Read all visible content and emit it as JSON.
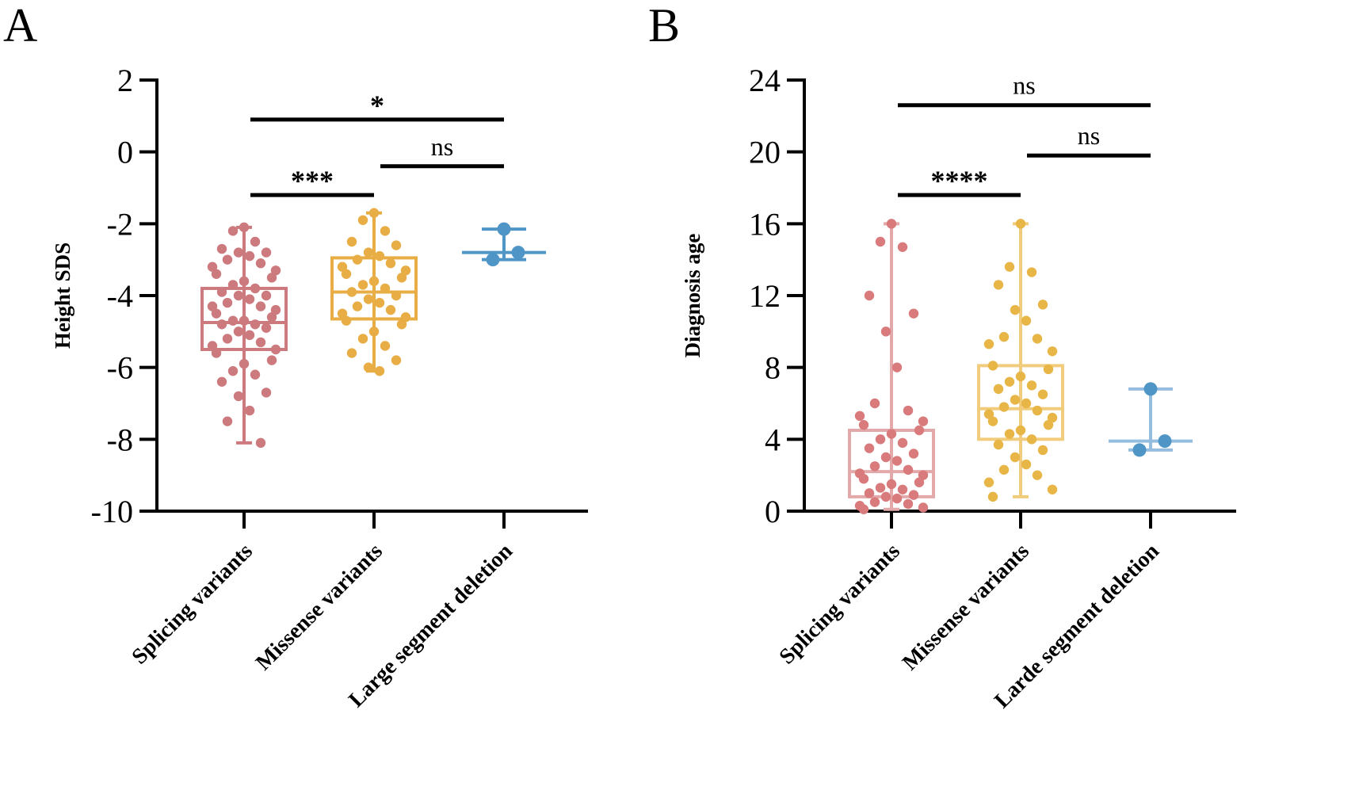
{
  "chart_data": [
    {
      "panel": "A",
      "type": "box",
      "ylabel": "Height SDS",
      "ylim": [
        -10,
        2
      ],
      "yticks": [
        "2",
        "0",
        "-2",
        "-4",
        "-6",
        "-8",
        "-10"
      ],
      "categories": [
        "Splicing variants",
        "Missense variants",
        "Large segment deletion"
      ],
      "colors": [
        "#cc7a7e",
        "#e8ae45",
        "#4f96c7"
      ],
      "boxes": [
        {
          "min": -8.1,
          "q1": -5.5,
          "median": -4.75,
          "q3": -3.8,
          "max": -2.1
        },
        {
          "min": -6.1,
          "q1": -4.65,
          "median": -3.9,
          "q3": -2.95,
          "max": -1.7
        },
        {
          "min": -3.0,
          "q1": -3.0,
          "median": -2.8,
          "q3": -2.15,
          "max": -2.15
        }
      ],
      "points": [
        [
          -2.1,
          -2.2,
          -2.5,
          -2.7,
          -2.8,
          -2.8,
          -2.9,
          -3.0,
          -3.1,
          -3.2,
          -3.3,
          -3.4,
          -3.5,
          -3.6,
          -3.7,
          -3.8,
          -3.9,
          -4.0,
          -4.0,
          -4.1,
          -4.2,
          -4.3,
          -4.3,
          -4.4,
          -4.5,
          -4.6,
          -4.7,
          -4.7,
          -4.8,
          -4.8,
          -4.9,
          -5.0,
          -5.1,
          -5.2,
          -5.3,
          -5.4,
          -5.5,
          -5.6,
          -5.8,
          -5.9,
          -6.1,
          -6.2,
          -6.4,
          -6.7,
          -6.8,
          -7.2,
          -7.5,
          -8.1
        ],
        [
          -1.7,
          -1.9,
          -2.2,
          -2.5,
          -2.6,
          -2.8,
          -2.9,
          -3.0,
          -3.1,
          -3.2,
          -3.3,
          -3.4,
          -3.5,
          -3.6,
          -3.7,
          -3.8,
          -3.9,
          -4.0,
          -4.1,
          -4.2,
          -4.3,
          -4.4,
          -4.5,
          -4.6,
          -4.7,
          -4.8,
          -5.0,
          -5.2,
          -5.4,
          -5.6,
          -5.8,
          -6.0,
          -6.1
        ],
        [
          -2.15,
          -2.8,
          -3.0
        ]
      ],
      "comparisons": [
        {
          "groups": [
            0,
            2
          ],
          "label": "*",
          "y": 0.9
        },
        {
          "groups": [
            1,
            2
          ],
          "label": "ns",
          "y": -0.4
        },
        {
          "groups": [
            0,
            1
          ],
          "label": "***",
          "y": -1.2
        }
      ]
    },
    {
      "panel": "B",
      "type": "box",
      "ylabel": "Diagnosis age",
      "ylim": [
        0,
        24
      ],
      "yticks": [
        "24",
        "20",
        "16",
        "12",
        "8",
        "4",
        "0"
      ],
      "categories": [
        "Splicing variants",
        "Missense variants",
        "Larde segment deletion"
      ],
      "colors": [
        "#e3a9aa",
        "#f1cc7d",
        "#94bde0"
      ],
      "point_colors": [
        "#d97a7c",
        "#e8b547",
        "#4f96c7"
      ],
      "boxes": [
        {
          "min": 0.1,
          "q1": 0.8,
          "median": 2.2,
          "q3": 4.5,
          "max": 16.0
        },
        {
          "min": 0.8,
          "q1": 4.0,
          "median": 5.7,
          "q3": 8.1,
          "max": 16.0
        },
        {
          "min": 3.4,
          "q1": 3.4,
          "median": 3.9,
          "q3": 6.8,
          "max": 6.8
        }
      ],
      "points": [
        [
          16.0,
          15.0,
          14.7,
          12.0,
          11.0,
          10.0,
          8.0,
          6.0,
          5.6,
          5.3,
          5.0,
          4.8,
          4.5,
          4.3,
          4.0,
          3.8,
          3.5,
          3.2,
          3.0,
          2.8,
          2.5,
          2.3,
          2.1,
          2.0,
          1.8,
          1.6,
          1.5,
          1.3,
          1.2,
          1.0,
          0.9,
          0.8,
          0.7,
          0.5,
          0.4,
          0.3,
          0.2,
          0.1
        ],
        [
          16.0,
          13.6,
          13.3,
          12.6,
          11.5,
          11.2,
          10.6,
          9.7,
          9.6,
          9.3,
          8.9,
          8.1,
          7.9,
          7.5,
          7.2,
          7.0,
          6.8,
          6.5,
          6.2,
          6.0,
          5.8,
          5.6,
          5.4,
          5.2,
          5.0,
          4.8,
          4.5,
          4.3,
          4.0,
          3.7,
          3.4,
          3.0,
          2.6,
          2.3,
          2.0,
          1.6,
          1.2,
          0.8
        ],
        [
          6.8,
          3.9,
          3.4
        ]
      ],
      "comparisons": [
        {
          "groups": [
            0,
            2
          ],
          "label": "ns",
          "y": 22.6
        },
        {
          "groups": [
            1,
            2
          ],
          "label": "ns",
          "y": 19.8
        },
        {
          "groups": [
            0,
            1
          ],
          "label": "****",
          "y": 17.6
        }
      ]
    }
  ]
}
